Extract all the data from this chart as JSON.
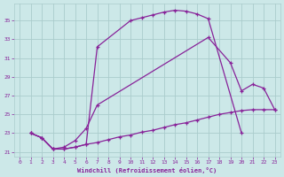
{
  "xlabel": "Windchill (Refroidissement éolien,°C)",
  "bg_color": "#cce8e8",
  "grid_color": "#aacccc",
  "line_color": "#882299",
  "yticks": [
    21,
    23,
    25,
    27,
    29,
    31,
    33,
    35
  ],
  "xticks": [
    0,
    1,
    2,
    3,
    4,
    5,
    6,
    7,
    8,
    9,
    10,
    11,
    12,
    13,
    14,
    15,
    16,
    17,
    18,
    19,
    20,
    21,
    22,
    23
  ],
  "ylim": [
    20.5,
    36.8
  ],
  "xlim": [
    -0.5,
    23.5
  ],
  "curve1_x": [
    1,
    2,
    3,
    4,
    5,
    6,
    7,
    10,
    11,
    12,
    13,
    14,
    15,
    16,
    17,
    20
  ],
  "curve1_y": [
    23.0,
    22.5,
    21.3,
    21.3,
    21.5,
    21.8,
    32.2,
    35.0,
    35.3,
    35.6,
    35.9,
    36.1,
    36.0,
    35.7,
    35.2,
    23.0
  ],
  "curve2_x": [
    1,
    2,
    3,
    4,
    5,
    6,
    7,
    8,
    9,
    10,
    11,
    12,
    13,
    14,
    15,
    16,
    17,
    18,
    19,
    20,
    21,
    22,
    23
  ],
  "curve2_y": [
    23.0,
    22.5,
    21.3,
    21.3,
    21.5,
    21.8,
    22.0,
    22.3,
    22.6,
    22.8,
    23.1,
    23.3,
    23.6,
    23.9,
    24.1,
    24.4,
    24.7,
    25.0,
    25.2,
    25.4,
    25.5,
    25.5,
    25.5
  ],
  "curve3_x": [
    1,
    2,
    3,
    4,
    5,
    6,
    7,
    17,
    19,
    20,
    21,
    22,
    23
  ],
  "curve3_y": [
    23.0,
    22.5,
    21.3,
    21.5,
    22.2,
    23.5,
    26.0,
    33.2,
    30.5,
    27.5,
    28.2,
    27.8,
    25.5
  ]
}
